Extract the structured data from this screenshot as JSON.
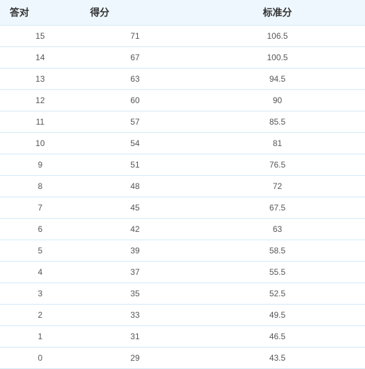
{
  "table": {
    "columns": [
      "答对",
      "得分",
      "标准分"
    ],
    "rows": [
      [
        "15",
        "71",
        "106.5"
      ],
      [
        "14",
        "67",
        "100.5"
      ],
      [
        "13",
        "63",
        "94.5"
      ],
      [
        "12",
        "60",
        "90"
      ],
      [
        "11",
        "57",
        "85.5"
      ],
      [
        "10",
        "54",
        "81"
      ],
      [
        "9",
        "51",
        "76.5"
      ],
      [
        "8",
        "48",
        "72"
      ],
      [
        "7",
        "45",
        "67.5"
      ],
      [
        "6",
        "42",
        "63"
      ],
      [
        "5",
        "39",
        "58.5"
      ],
      [
        "4",
        "37",
        "55.5"
      ],
      [
        "3",
        "35",
        "52.5"
      ],
      [
        "2",
        "33",
        "49.5"
      ],
      [
        "1",
        "31",
        "46.5"
      ],
      [
        "0",
        "29",
        "43.5"
      ]
    ],
    "header_bg": "#eef7fd",
    "border_color": "#d4e9f7",
    "header_fontsize": 14,
    "cell_fontsize": 12,
    "header_color": "#333333",
    "cell_color": "#555555"
  }
}
